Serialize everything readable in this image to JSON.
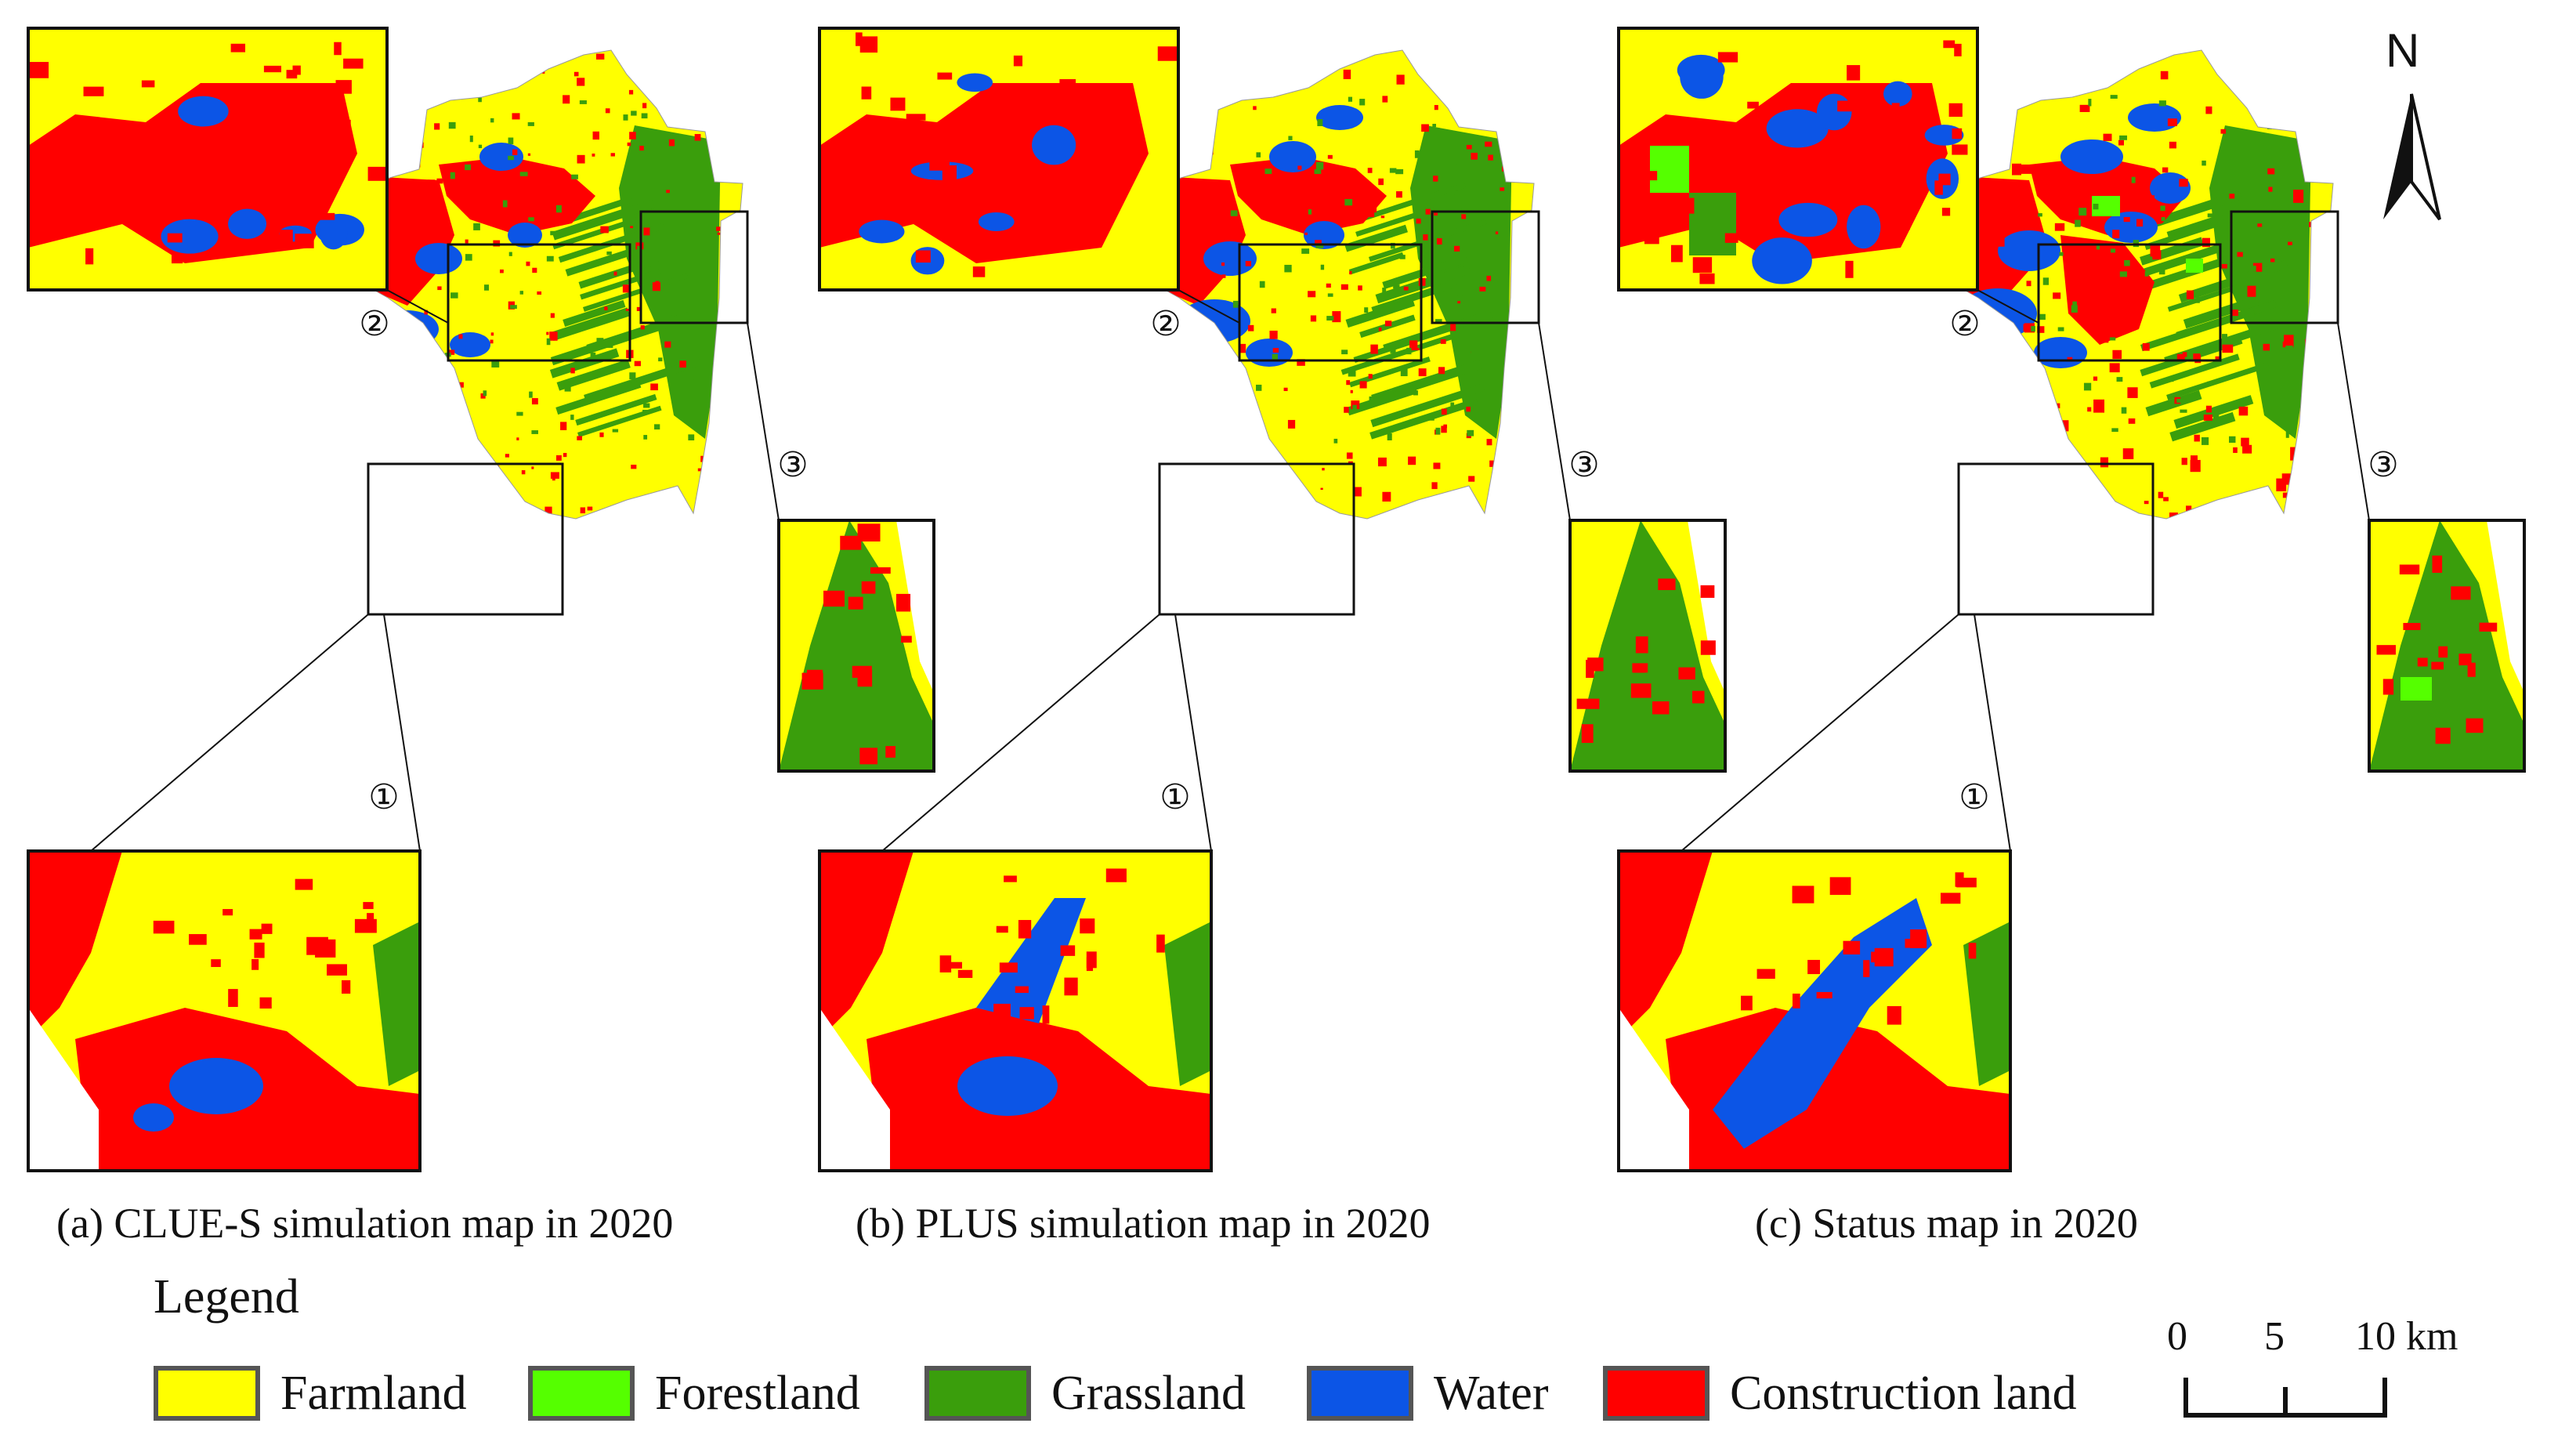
{
  "figure": {
    "panels": [
      {
        "id": "a",
        "caption": "(a) CLUE-S simulation map in 2020",
        "zoom_labels": [
          "①",
          "②",
          "③"
        ]
      },
      {
        "id": "b",
        "caption": "(b) PLUS simulation map in 2020",
        "zoom_labels": [
          "①",
          "②",
          "③"
        ]
      },
      {
        "id": "c",
        "caption": "(c) Status map in 2020",
        "zoom_labels": [
          "①",
          "②",
          "③"
        ]
      }
    ],
    "legend": {
      "title": "Legend",
      "items": [
        {
          "label": "Farmland",
          "color": "#ffff00"
        },
        {
          "label": "Forestland",
          "color": "#55ff00"
        },
        {
          "label": "Grassland",
          "color": "#3a9e0c"
        },
        {
          "label": "Water",
          "color": "#0c55e6"
        },
        {
          "label": "Construction land",
          "color": "#ff0000"
        }
      ]
    },
    "scale_bar": {
      "labels": [
        "0",
        "5",
        "10 km"
      ]
    },
    "north_arrow": {
      "label": "N"
    },
    "colors": {
      "farmland": "#ffff00",
      "forestland": "#55ff00",
      "grassland": "#3a9e0c",
      "water": "#0c55e6",
      "construction": "#ff0000",
      "frame": "#111111"
    }
  }
}
